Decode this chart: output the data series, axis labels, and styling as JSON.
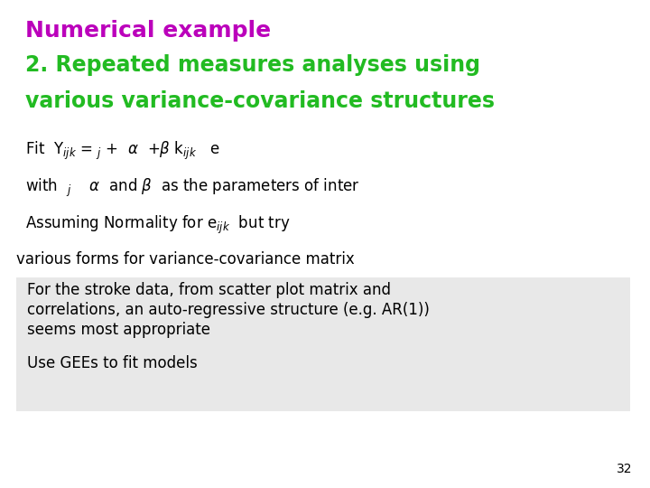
{
  "bg_color": "#ffffff",
  "title_line1": "Numerical example",
  "title_line2": "2. Repeated measures analyses using",
  "title_line3": "various variance-covariance structures",
  "title_color": "#bb00bb",
  "subtitle_color": "#22bb22",
  "body_color": "#000000",
  "page_number": "32",
  "bullet1_line1": "For the stroke data, from scatter plot matrix and",
  "bullet1_line2": "correlations, an auto-regressive structure (e.g. AR(1))",
  "bullet1_line3": "seems most appropriate",
  "bullet2_line": "Use GEEs to fit models",
  "title1_fs": 18,
  "title23_fs": 17,
  "body_fs": 12,
  "bullet_fs": 12,
  "page_fs": 10
}
